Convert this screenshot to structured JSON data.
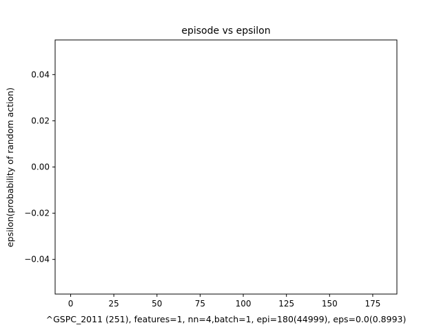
{
  "chart_data": {
    "type": "line",
    "title": "episode vs epsilon",
    "xlabel": "^GSPC_2011 (251), features=1, nn=4,batch=1, epi=180(44999), eps=0.0(0.8993)",
    "ylabel": "epsilon(probability of random action)",
    "xlim": [
      -9,
      189
    ],
    "ylim": [
      -0.055,
      0.055
    ],
    "x_ticks": [
      0,
      25,
      50,
      75,
      100,
      125,
      150,
      175
    ],
    "y_ticks": [
      -0.04,
      -0.02,
      0.0,
      0.02,
      0.04
    ],
    "y_tick_labels": [
      "−0.04",
      "−0.02",
      "0.00",
      "0.02",
      "0.04"
    ],
    "series": [],
    "grid": false,
    "legend": "none"
  },
  "colors": {
    "background": "#ffffff",
    "axes": "#000000",
    "text": "#000000"
  }
}
